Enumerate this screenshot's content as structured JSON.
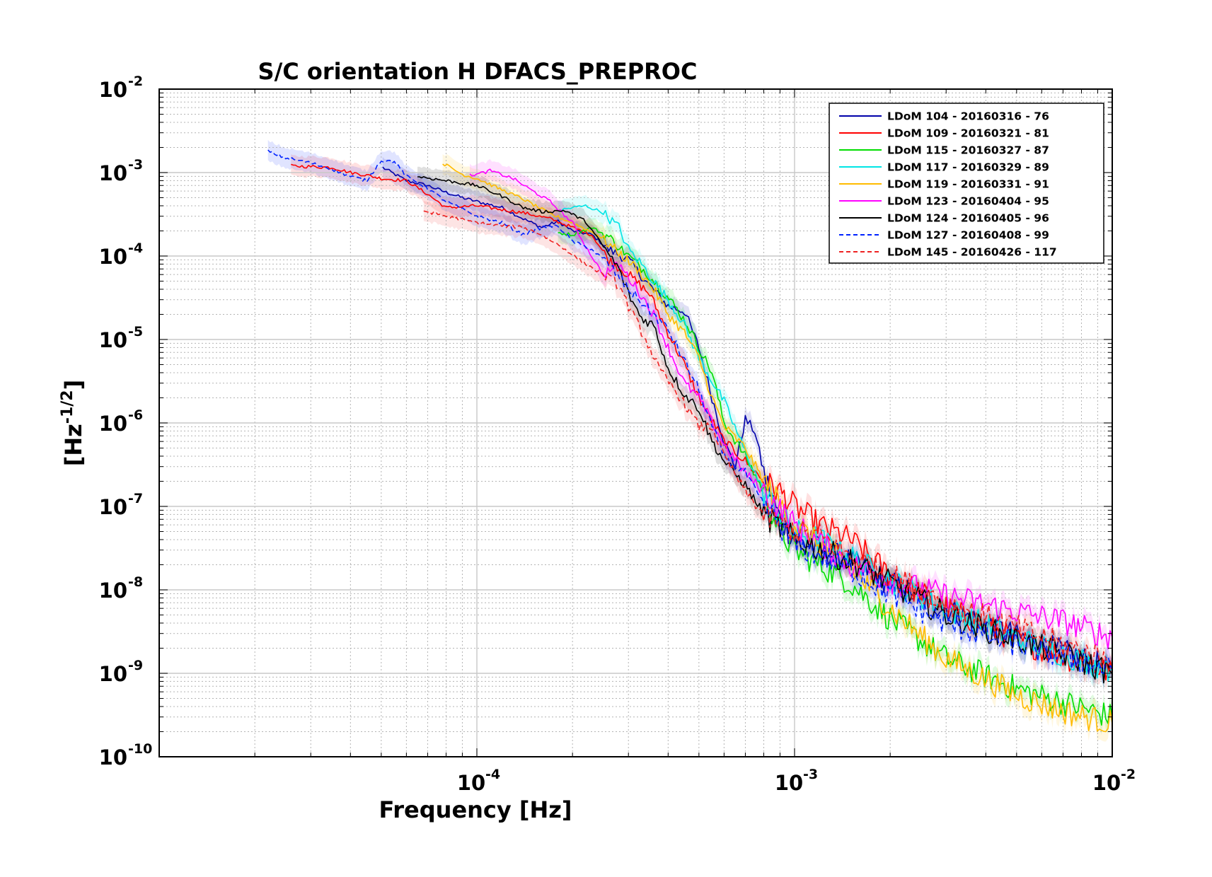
{
  "chart_data": {
    "type": "line",
    "title": "S/C orientation H DFACS_PREPROC",
    "xlabel": "Frequency  [Hz]",
    "ylabel": "[Hz",
    "ylabel_exponent": "-1/2",
    "ylabel_close": "]",
    "xscale": "log",
    "yscale": "log",
    "xlim": [
      1e-05,
      0.01
    ],
    "ylim": [
      1e-10,
      0.01
    ],
    "grid": true,
    "legend_position": "top-right",
    "x_ticks": [
      {
        "base": "10",
        "exp": "-4",
        "value": 0.0001
      },
      {
        "base": "10",
        "exp": "-3",
        "value": 0.001
      },
      {
        "base": "10",
        "exp": "-2",
        "value": 0.01
      }
    ],
    "y_ticks": [
      {
        "base": "10",
        "exp": "-2",
        "value": 0.01
      },
      {
        "base": "10",
        "exp": "-3",
        "value": 0.001
      },
      {
        "base": "10",
        "exp": "-4",
        "value": 0.0001
      },
      {
        "base": "10",
        "exp": "-5",
        "value": 1e-05
      },
      {
        "base": "10",
        "exp": "-6",
        "value": 1e-06
      },
      {
        "base": "10",
        "exp": "-7",
        "value": 1e-07
      },
      {
        "base": "10",
        "exp": "-8",
        "value": 1e-08
      },
      {
        "base": "10",
        "exp": "-9",
        "value": 1e-09
      },
      {
        "base": "10",
        "exp": "-10",
        "value": 1e-10
      }
    ],
    "series": [
      {
        "name": "LDoM 104 - 20160316 - 76",
        "color": "#0000aa",
        "dash": false,
        "x": [
          5.05e-05,
          6e-05,
          7e-05,
          8e-05,
          9e-05,
          0.0001,
          0.00012,
          0.00014,
          0.00016,
          0.00018,
          0.0002,
          0.00023,
          0.00026,
          0.0003,
          0.00034,
          0.0004,
          0.00045,
          0.0005,
          0.00055,
          0.0006,
          0.00065,
          0.0007,
          0.00075,
          0.0008,
          0.0009,
          0.001,
          0.0015,
          0.002,
          0.003,
          0.005,
          0.007,
          0.01
        ],
        "y": [
          0.00115,
          0.0008,
          0.0007,
          0.00058,
          0.0005,
          0.00045,
          0.00038,
          0.00028,
          0.00022,
          0.00026,
          0.0002,
          0.00018,
          0.00012,
          9e-05,
          5e-05,
          2.5e-05,
          2.2e-05,
          8e-06,
          2e-06,
          6e-07,
          3e-07,
          1.1e-06,
          8e-07,
          2.5e-07,
          7e-08,
          4e-08,
          2.2e-08,
          1.2e-08,
          6e-09,
          2.8e-09,
          1.8e-09,
          1.1e-09
        ]
      },
      {
        "name": "LDoM 109 - 20160321 - 81",
        "color": "#ff0000",
        "dash": false,
        "x": [
          2.6e-05,
          3e-05,
          3.5e-05,
          4e-05,
          4.5e-05,
          5e-05,
          6e-05,
          7e-05,
          8e-05,
          0.0001,
          0.00012,
          0.00014,
          0.00017,
          0.0002,
          0.00023,
          0.00026,
          0.0003,
          0.00035,
          0.0004,
          0.00045,
          0.0005,
          0.0006,
          0.0007,
          0.0008,
          0.0009,
          0.001,
          0.0012,
          0.0015,
          0.002,
          0.003,
          0.005,
          0.007,
          0.01
        ],
        "y": [
          0.0012,
          0.00118,
          0.00115,
          0.001,
          0.00093,
          0.00085,
          0.0008,
          0.00055,
          0.00038,
          0.0004,
          0.00036,
          0.00033,
          0.00028,
          0.00022,
          0.00018,
          9e-05,
          6e-05,
          3.5e-05,
          1.2e-05,
          5e-06,
          2e-06,
          6e-07,
          3.5e-07,
          2e-07,
          1.5e-07,
          1e-07,
          6e-08,
          4e-08,
          1.5e-08,
          6e-09,
          2.5e-09,
          1.6e-09,
          1e-09
        ]
      },
      {
        "name": "LDoM 115 - 20160327 - 87",
        "color": "#00dd00",
        "dash": false,
        "x": [
          0.00018,
          0.0002,
          0.00023,
          0.00026,
          0.0003,
          0.00034,
          0.00038,
          0.00042,
          0.00046,
          0.0005,
          0.00055,
          0.0006,
          0.0007,
          0.0008,
          0.0009,
          0.001,
          0.0012,
          0.0015,
          0.002,
          0.003,
          0.005,
          0.007,
          0.01
        ],
        "y": [
          0.00019,
          0.00018,
          0.00022,
          0.00017,
          0.0001,
          6.5e-05,
          4e-05,
          2.5e-05,
          1.5e-05,
          8e-06,
          4e-06,
          1e-06,
          4e-07,
          1.5e-07,
          5e-08,
          3e-08,
          2e-08,
          1.2e-08,
          4.5e-09,
          1.5e-09,
          6.5e-10,
          4.5e-10,
          3e-10
        ]
      },
      {
        "name": "LDoM 117 - 20160329 - 89",
        "color": "#00e5e5",
        "dash": false,
        "x": [
          0.00018,
          0.0002,
          0.00022,
          0.00025,
          0.00028,
          0.0003,
          0.00033,
          0.00036,
          0.0004,
          0.00045,
          0.0005,
          0.0006,
          0.0007,
          0.0008,
          0.0009,
          0.001,
          0.0012,
          0.0015,
          0.002,
          0.003,
          0.005,
          0.007,
          0.01
        ],
        "y": [
          0.00035,
          0.00038,
          0.0004,
          0.00033,
          0.00022,
          0.00012,
          8e-05,
          5e-05,
          3e-05,
          1.5e-05,
          6e-06,
          1.8e-06,
          4.5e-07,
          1.5e-07,
          8e-08,
          5e-08,
          4e-08,
          2.5e-08,
          1.3e-08,
          6e-09,
          2.6e-09,
          1.7e-09,
          1.1e-09
        ]
      },
      {
        "name": "LDoM 119 - 20160331 - 91",
        "color": "#ffbb00",
        "dash": false,
        "x": [
          7.8e-05,
          9e-05,
          0.0001,
          0.00012,
          0.00014,
          0.00017,
          0.0002,
          0.00024,
          0.00028,
          0.00032,
          0.00036,
          0.0004,
          0.00045,
          0.0005,
          0.00055,
          0.0006,
          0.0007,
          0.0008,
          0.001,
          0.0015,
          0.002,
          0.003,
          0.005,
          0.007,
          0.01
        ],
        "y": [
          0.0013,
          0.00095,
          0.00085,
          0.00062,
          0.00048,
          0.00032,
          0.00025,
          0.00018,
          0.00011,
          7e-05,
          4e-05,
          2e-05,
          1.2e-05,
          6e-06,
          2e-06,
          9e-07,
          5e-07,
          2e-07,
          6e-08,
          1.8e-08,
          6e-09,
          1.5e-09,
          5.5e-10,
          3.5e-10,
          2.5e-10
        ]
      },
      {
        "name": "LDoM 123 - 20160404 - 95",
        "color": "#ff00ff",
        "dash": false,
        "x": [
          9.5e-05,
          0.0001,
          0.00011,
          0.00013,
          0.00015,
          0.00017,
          0.0002,
          0.00022,
          0.00025,
          0.00028,
          0.00032,
          0.00036,
          0.0004,
          0.00045,
          0.0005,
          0.0006,
          0.0007,
          0.0008,
          0.001,
          0.0015,
          0.002,
          0.003,
          0.005,
          0.007,
          0.01
        ],
        "y": [
          0.00095,
          0.00095,
          0.00105,
          0.00085,
          0.0006,
          0.00045,
          0.00025,
          0.00013,
          6e-05,
          8e-05,
          4e-05,
          2e-05,
          8e-06,
          3e-06,
          2e-06,
          5.5e-07,
          2.5e-07,
          1.5e-07,
          6e-08,
          2e-08,
          1.3e-08,
          8.5e-09,
          5.5e-09,
          4.2e-09,
          2.7e-09
        ]
      },
      {
        "name": "LDoM 124 - 20160405 - 96",
        "color": "#000000",
        "dash": false,
        "x": [
          6.5e-05,
          8e-05,
          0.0001,
          0.00012,
          0.00014,
          0.00016,
          0.00019,
          0.00022,
          0.00025,
          0.00028,
          0.0003,
          0.00033,
          0.00036,
          0.0004,
          0.00045,
          0.0005,
          0.00055,
          0.0006,
          0.0007,
          0.0008,
          0.001,
          0.0015,
          0.002,
          0.003,
          0.005,
          0.007,
          0.01
        ],
        "y": [
          0.0009,
          0.0008,
          0.0007,
          0.00052,
          0.00038,
          0.00034,
          0.00035,
          0.00026,
          0.00013,
          7e-05,
          3.5e-05,
          1.8e-05,
          1.5e-05,
          4.5e-06,
          2.2e-06,
          1.5e-06,
          6e-07,
          3.5e-07,
          1.8e-07,
          8e-08,
          4e-08,
          2.2e-08,
          1.2e-08,
          5e-09,
          2.5e-09,
          1.7e-09,
          1e-09
        ]
      },
      {
        "name": "LDoM 127 - 20160408 - 99",
        "color": "#0022ff",
        "dash": true,
        "x": [
          2.2e-05,
          2.5e-05,
          3e-05,
          3.5e-05,
          4e-05,
          4.5e-05,
          5e-05,
          5.5e-05,
          6e-05,
          7e-05,
          8e-05,
          0.0001,
          0.00012,
          0.00014,
          0.00016,
          0.00018,
          0.0002,
          0.00023,
          0.00026,
          0.0003,
          0.00034,
          0.0004,
          0.00045,
          0.0005,
          0.00055,
          0.0006,
          0.0007,
          0.0008,
          0.0009,
          0.001,
          0.0015,
          0.002,
          0.003,
          0.005,
          0.007,
          0.01
        ],
        "y": [
          0.0018,
          0.0015,
          0.0013,
          0.0011,
          0.0009,
          0.0008,
          0.0014,
          0.00135,
          0.0009,
          0.00065,
          0.00045,
          0.0003,
          0.00025,
          0.00018,
          0.00022,
          0.00023,
          0.00015,
          0.00012,
          8e-05,
          4e-05,
          2.5e-05,
          1.3e-05,
          5.5e-06,
          2.5e-06,
          9e-07,
          4e-07,
          2.5e-07,
          1e-07,
          6e-08,
          3.5e-08,
          1.8e-08,
          9e-09,
          4e-09,
          2.2e-09,
          1.6e-09,
          1.1e-09
        ]
      },
      {
        "name": "LDoM 145 - 20160426 - 117",
        "color": "#ee2222",
        "dash": true,
        "x": [
          6.8e-05,
          8e-05,
          0.0001,
          0.00012,
          0.00014,
          0.00016,
          0.00019,
          0.00022,
          0.00025,
          0.00028,
          0.0003,
          0.00034,
          0.00038,
          0.00042,
          0.00046,
          0.0005,
          0.00055,
          0.0006,
          0.0007,
          0.0008,
          0.001,
          0.0012,
          0.0015,
          0.002,
          0.003,
          0.005,
          0.007,
          0.01
        ],
        "y": [
          0.00035,
          0.0003,
          0.00025,
          0.00023,
          0.00022,
          0.00018,
          0.00012,
          8e-05,
          6e-05,
          4.5e-05,
          2.5e-05,
          1e-05,
          4e-06,
          2.5e-06,
          1.5e-06,
          9e-07,
          9e-07,
          4e-07,
          1.5e-07,
          8e-08,
          5e-08,
          4.5e-08,
          2.5e-08,
          1.5e-08,
          7e-09,
          3.5e-09,
          2.2e-09,
          1.4e-09
        ]
      }
    ]
  }
}
